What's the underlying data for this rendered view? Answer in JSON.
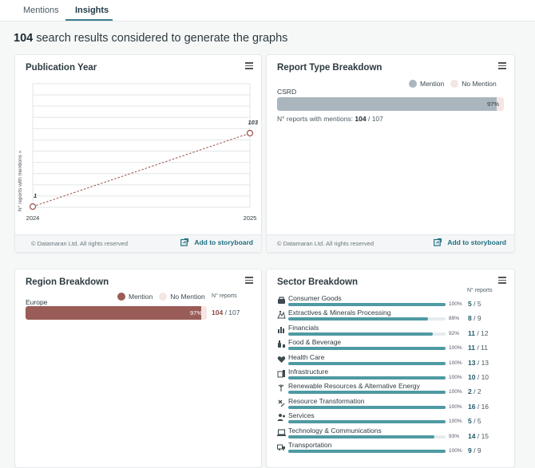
{
  "tabs": [
    {
      "label": "Mentions",
      "active": false
    },
    {
      "label": "Insights",
      "active": true
    }
  ],
  "summary": {
    "count": "104",
    "text": "search results considered to generate the graphs"
  },
  "footer": {
    "copyright": "© Datamaran Ltd. All rights reserved",
    "storyboard_label": "Add to storyboard"
  },
  "publication_year": {
    "title": "Publication Year",
    "ylabel": "N° reports with mentions »"
  },
  "chart_data": {
    "type": "line",
    "title": "Publication Year",
    "xlabel": "",
    "ylabel": "N° reports with mentions »",
    "x": [
      "2024",
      "2025"
    ],
    "series": [
      {
        "name": "N° reports with mentions",
        "values": [
          1,
          103
        ]
      }
    ],
    "data_labels": [
      "1",
      "103"
    ],
    "grid": true
  },
  "report_type": {
    "title": "Report Type Breakdown",
    "legend": [
      {
        "label": "Mention",
        "color": "#a9b6bd"
      },
      {
        "label": "No Mention",
        "color": "#f5e6e3"
      }
    ],
    "bars": [
      {
        "label": "CSRD",
        "percent": 97,
        "percent_label": "97%"
      }
    ],
    "count_prefix": "N° reports with mentions:",
    "count_value": "104",
    "count_total": "/ 107"
  },
  "region": {
    "title": "Region Breakdown",
    "legend": [
      {
        "label": "Mention",
        "color": "#9a5c56"
      },
      {
        "label": "No Mention",
        "color": "#f5e6e3"
      }
    ],
    "header": "N° reports",
    "bars": [
      {
        "label": "Europe",
        "percent": 97,
        "percent_label": "97%",
        "count": "104",
        "total": "/ 107"
      }
    ]
  },
  "sector": {
    "title": "Sector Breakdown",
    "header": "N° reports",
    "rows": [
      {
        "name": "Consumer Goods",
        "percent": 100,
        "percent_label": "100%",
        "count": "5",
        "total": "/ 5",
        "icon": "cart-icon"
      },
      {
        "name": "Extractives & Minerals Processing",
        "percent": 89,
        "percent_label": "89%",
        "count": "8",
        "total": "/ 9",
        "icon": "mining-icon"
      },
      {
        "name": "Financials",
        "percent": 92,
        "percent_label": "92%",
        "count": "11",
        "total": "/ 12",
        "icon": "bar-chart-icon"
      },
      {
        "name": "Food & Beverage",
        "percent": 100,
        "percent_label": "100%",
        "count": "11",
        "total": "/ 11",
        "icon": "bottle-icon"
      },
      {
        "name": "Health Care",
        "percent": 100,
        "percent_label": "100%",
        "count": "13",
        "total": "/ 13",
        "icon": "heart-icon"
      },
      {
        "name": "Infrastructure",
        "percent": 100,
        "percent_label": "100%",
        "count": "10",
        "total": "/ 10",
        "icon": "building-icon"
      },
      {
        "name": "Renewable Resources & Alternative Energy",
        "percent": 100,
        "percent_label": "100%",
        "count": "2",
        "total": "/ 2",
        "icon": "wind-icon"
      },
      {
        "name": "Resource Transformation",
        "percent": 100,
        "percent_label": "100%",
        "count": "16",
        "total": "/ 16",
        "icon": "satellite-icon"
      },
      {
        "name": "Services",
        "percent": 100,
        "percent_label": "100%",
        "count": "5",
        "total": "/ 5",
        "icon": "people-icon"
      },
      {
        "name": "Technology & Communications",
        "percent": 93,
        "percent_label": "93%",
        "count": "14",
        "total": "/ 15",
        "icon": "laptop-icon"
      },
      {
        "name": "Transportation",
        "percent": 100,
        "percent_label": "100%",
        "count": "9",
        "total": "/ 9",
        "icon": "truck-icon"
      }
    ]
  }
}
